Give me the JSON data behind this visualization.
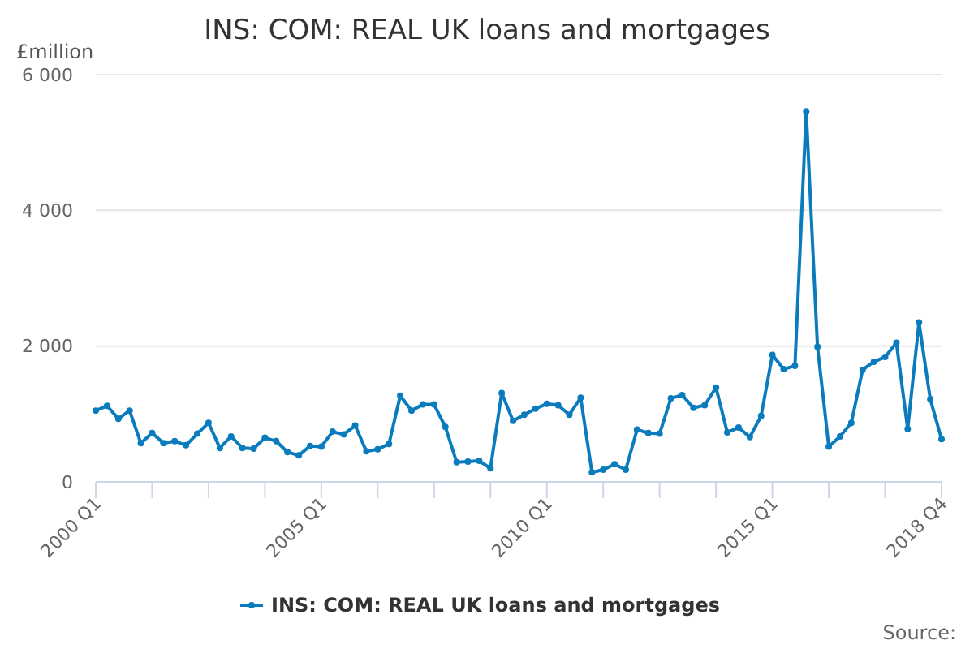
{
  "chart_data": {
    "type": "line",
    "title": "INS: COM: REAL UK loans and mortgages",
    "ylabel": "£million",
    "categories": [
      "2000 Q1",
      null,
      null,
      null,
      null,
      null,
      null,
      null,
      null,
      null,
      null,
      null,
      null,
      null,
      null,
      null,
      null,
      null,
      null,
      null,
      "2005 Q1",
      null,
      null,
      null,
      null,
      null,
      null,
      null,
      null,
      null,
      null,
      null,
      null,
      null,
      null,
      null,
      null,
      null,
      null,
      null,
      "2010 Q1",
      null,
      null,
      null,
      null,
      null,
      null,
      null,
      null,
      null,
      null,
      null,
      null,
      null,
      null,
      null,
      null,
      null,
      null,
      null,
      "2015 Q1",
      null,
      null,
      null,
      null,
      null,
      null,
      null,
      null,
      null,
      null,
      null,
      null,
      null,
      null,
      "2018 Q4"
    ],
    "series": [
      {
        "name": "INS: COM: REAL UK loans and mortgages",
        "color": "#0a7bbd",
        "values": [
          1050,
          1120,
          930,
          1050,
          570,
          720,
          570,
          600,
          540,
          710,
          870,
          500,
          670,
          500,
          490,
          650,
          600,
          440,
          390,
          530,
          520,
          740,
          700,
          830,
          450,
          480,
          560,
          1270,
          1050,
          1140,
          1140,
          810,
          290,
          300,
          310,
          200,
          1310,
          900,
          990,
          1080,
          1150,
          1130,
          990,
          1240,
          140,
          180,
          260,
          180,
          770,
          720,
          710,
          1230,
          1280,
          1090,
          1130,
          1390,
          730,
          800,
          660,
          970,
          1870,
          1660,
          1710,
          5460,
          1990,
          520,
          670,
          870,
          1650,
          1770,
          1840,
          2050,
          780,
          2350,
          1220,
          630
        ]
      }
    ],
    "ylim": [
      0,
      6000
    ],
    "yticks": [
      0,
      {
        "value": 2000,
        "label": "2 000"
      },
      {
        "value": 4000,
        "label": "4 000"
      },
      {
        "value": 6000,
        "label": "6 000"
      }
    ],
    "grid": "y",
    "legend": "bottom",
    "marker": "circle",
    "line_style": "solid",
    "annotations": [
      "Source:"
    ]
  }
}
